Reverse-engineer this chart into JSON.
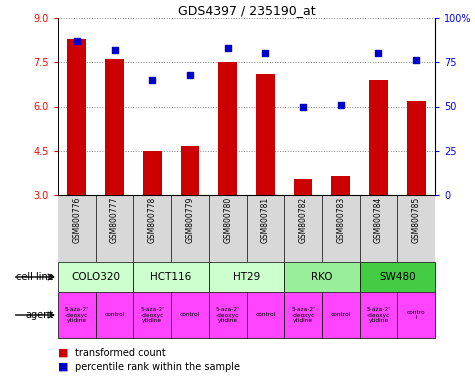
{
  "title": "GDS4397 / 235190_at",
  "samples": [
    "GSM800776",
    "GSM800777",
    "GSM800778",
    "GSM800779",
    "GSM800780",
    "GSM800781",
    "GSM800782",
    "GSM800783",
    "GSM800784",
    "GSM800785"
  ],
  "red_values": [
    8.3,
    7.6,
    4.5,
    4.65,
    7.5,
    7.1,
    3.55,
    3.65,
    6.9,
    6.2
  ],
  "blue_values": [
    87,
    82,
    65,
    68,
    83,
    80,
    50,
    51,
    80,
    76
  ],
  "ylim_left": [
    3,
    9
  ],
  "ylim_right": [
    0,
    100
  ],
  "yticks_left": [
    3,
    4.5,
    6,
    7.5,
    9
  ],
  "yticks_right": [
    0,
    25,
    50,
    75,
    100
  ],
  "cell_lines": [
    {
      "name": "COLO320",
      "start": 0,
      "end": 2
    },
    {
      "name": "HCT116",
      "start": 2,
      "end": 4
    },
    {
      "name": "HT29",
      "start": 4,
      "end": 6
    },
    {
      "name": "RKO",
      "start": 6,
      "end": 8
    },
    {
      "name": "SW480",
      "start": 8,
      "end": 10
    }
  ],
  "cell_line_colors": [
    "#ccffcc",
    "#ccffcc",
    "#ccffcc",
    "#99ee99",
    "#44cc44"
  ],
  "agent_texts": [
    "5-aza-2'\n-deoxyc\nytidine",
    "control",
    "5-aza-2'\n-deoxyc\nytidine",
    "control",
    "5-aza-2'\n-deoxyc\nytidine",
    "control",
    "5-aza-2'\n-deoxyc\nytidine",
    "control",
    "5-aza-2'\n-deoxyc\nytidine",
    "contro\nl"
  ],
  "drug_color": "#ff44ff",
  "bar_color": "#cc0000",
  "dot_color": "#0000cc",
  "sample_bg": "#d8d8d8",
  "label_cell_line": "cell line",
  "label_agent": "agent",
  "legend_red": "transformed count",
  "legend_blue": "percentile rank within the sample"
}
